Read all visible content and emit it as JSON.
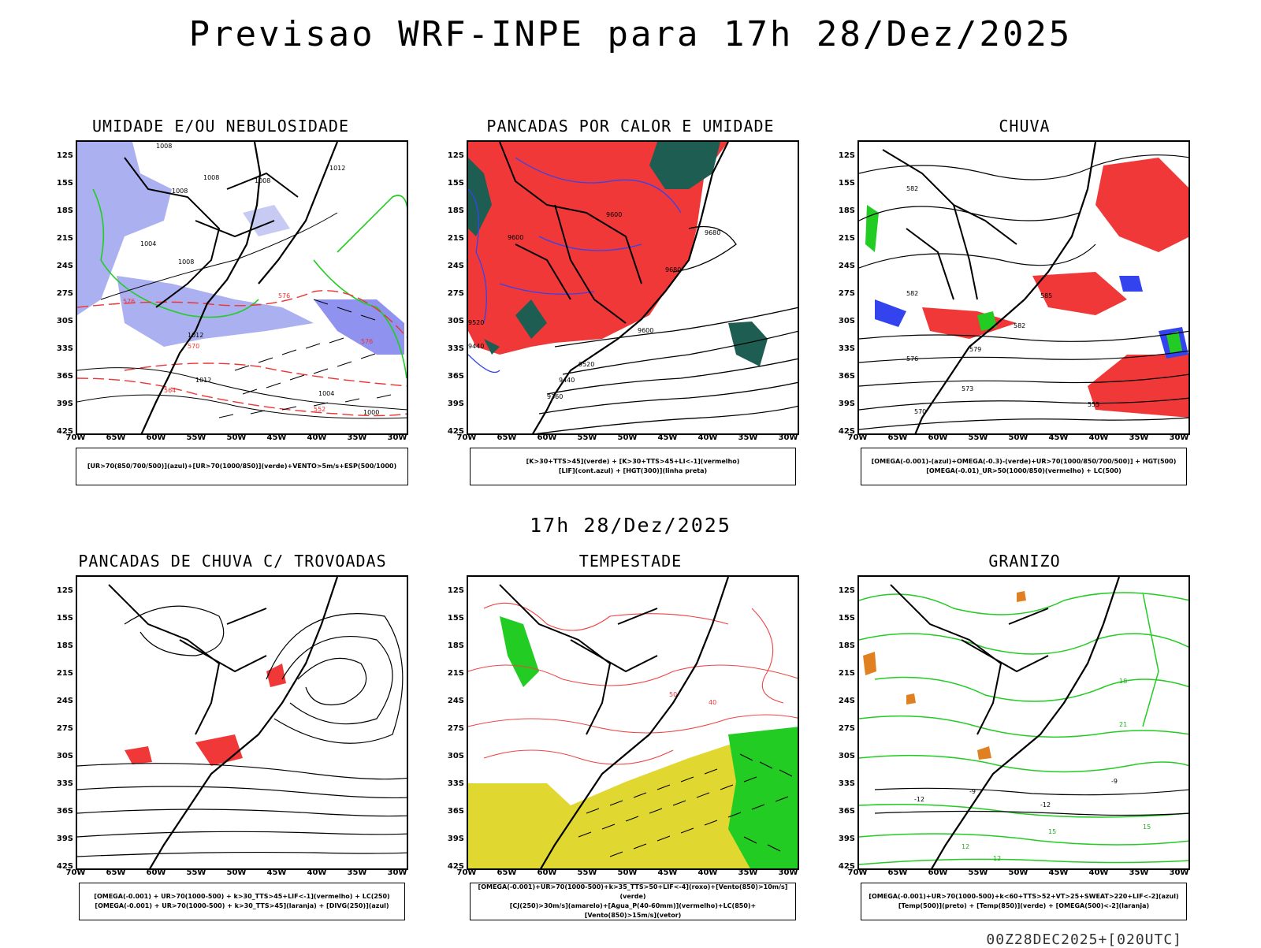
{
  "title": "Previsao WRF-INPE  para 17h 28/Dez/2025",
  "mid_time": "17h 28/Dez/2025",
  "footer": "00Z28DEC2025+[020UTC]",
  "lat_labels": [
    "12S",
    "15S",
    "18S",
    "21S",
    "24S",
    "27S",
    "30S",
    "33S",
    "36S",
    "39S",
    "42S"
  ],
  "lon_labels": [
    "70W",
    "65W",
    "60W",
    "55W",
    "50W",
    "45W",
    "40W",
    "35W",
    "30W"
  ],
  "panels": [
    {
      "title": "UMIDADE E/OU NEBULOSIDADE",
      "legend_lines": [
        "[UR>70(850/700/500)](azul)+[UR>70(1000/850)](verde)+VENTO>5m/s+ESP(500/1000)"
      ],
      "contour_labels": [
        "1008",
        "1008",
        "1012",
        "1008",
        "1008",
        "1004",
        "1008",
        "1012",
        "1012",
        "1004",
        "1000",
        "576",
        "576",
        "570",
        "576",
        "564",
        "552"
      ]
    },
    {
      "title": "PANCADAS POR CALOR E UMIDADE",
      "legend_lines": [
        "[K>30+TTS>45](verde) + [K>30+TTS>45+LI<-1](vermelho)",
        "[LIF](cont.azul) + [HGT(300)](linha preta)"
      ],
      "contour_labels": [
        "9600",
        "9600",
        "9680",
        "9680",
        "9600",
        "9520",
        "9440",
        "9360",
        "9520",
        "9440"
      ]
    },
    {
      "title": "CHUVA",
      "legend_lines": [
        "[OMEGA(-0.001)-(azul)+OMEGA(-0.3)-(verde)+UR>70(1000/850/700/500)] + HGT(500)",
        "[OMEGA(-0.01)_UR>50(1000/850)(vermelho) + LC(500)"
      ],
      "contour_labels": [
        "582",
        "582",
        "585",
        "582",
        "579",
        "576",
        "573",
        "570",
        "555"
      ]
    },
    {
      "title": "PANCADAS DE CHUVA C/ TROVOADAS",
      "legend_lines": [
        "[OMEGA(-0.001) + UR>70(1000-500) + k>30_TTS>45+LIF<-1](vermelho) + LC(250)",
        "[OMEGA(-0.001) + UR>70(1000-500) + k>30_TTS>45](laranja) + [DIVG(250)](azul)"
      ],
      "contour_labels": []
    },
    {
      "title": "TEMPESTADE",
      "legend_lines": [
        "[OMEGA(-0.001)+UR>70(1000-500)+k>35_TTS>50+LIF<-4](roxo)+[Vento(850)>10m/s](verde)",
        "[CJ(250)>30m/s](amarelo)+[Agua_P(40-60mm)](vermelho)+LC(850)+[Vento(850)>15m/s](vetor)"
      ],
      "contour_labels": [
        "50",
        "40"
      ]
    },
    {
      "title": "GRANIZO",
      "legend_lines": [
        "[OMEGA(-0.001)+UR>70(1000-500)+k<60+TTS>52+VT>25+SWEAT>220+LIF<-2](azul)",
        "[Temp(500)](preto) + [Temp(850)](verde) + [OMEGA(500)<-2](laranja)"
      ],
      "contour_labels": [
        "-12",
        "-12",
        "-9",
        "12",
        "15",
        "18",
        "21",
        "12",
        "15",
        "-9"
      ]
    }
  ],
  "colors": {
    "humid_high": "#aab0f0",
    "humid_low": "#22cc22",
    "convective_red": "#f03838",
    "convective_green": "#1e5e52",
    "lif_blue": "#3344ee",
    "jet_yellow": "#e0d830",
    "wind_green": "#22cc22",
    "hail_orange": "#e08020",
    "red_dash": "#ee3333"
  }
}
